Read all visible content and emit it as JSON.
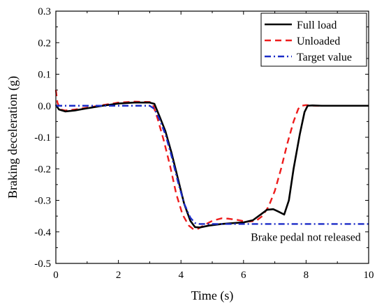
{
  "chart_data": {
    "type": "line",
    "xlabel": "Time (s)",
    "ylabel": "Braking deceleration (g)",
    "xlim": [
      0,
      10
    ],
    "ylim": [
      -0.5,
      0.3
    ],
    "xticks": [
      0,
      2,
      4,
      6,
      8,
      10
    ],
    "yticks": [
      -0.5,
      -0.4,
      -0.3,
      -0.2,
      -0.1,
      0.0,
      0.1,
      0.2,
      0.3
    ],
    "ytick_labels": [
      "-0.5",
      "-0.4",
      "-0.3",
      "-0.2",
      "-0.1",
      "0.0",
      "0.1",
      "0.2",
      "0.3"
    ],
    "xtick_labels": [
      "0",
      "2",
      "4",
      "6",
      "8",
      "10"
    ],
    "grid": false,
    "legend_position": "top-right",
    "annotation": {
      "text": "Brake pedal not released",
      "x": 9.75,
      "y": -0.415
    },
    "series": [
      {
        "name": "Full load",
        "color": "#000000",
        "dash": "solid",
        "x": [
          0,
          0.1,
          0.3,
          0.6,
          1.0,
          1.5,
          2.0,
          2.5,
          3.0,
          3.15,
          3.3,
          3.5,
          3.7,
          3.9,
          4.1,
          4.3,
          4.45,
          4.6,
          4.9,
          5.3,
          5.7,
          6.0,
          6.3,
          6.55,
          6.75,
          6.95,
          7.1,
          7.3,
          7.45,
          7.6,
          7.8,
          7.95,
          8.05,
          8.2,
          8.5,
          9.0,
          9.5,
          10.0
        ],
        "y": [
          0.003,
          -0.012,
          -0.018,
          -0.015,
          -0.008,
          0.0,
          0.007,
          0.01,
          0.01,
          0.006,
          -0.03,
          -0.08,
          -0.15,
          -0.23,
          -0.31,
          -0.365,
          -0.385,
          -0.386,
          -0.38,
          -0.375,
          -0.372,
          -0.37,
          -0.363,
          -0.345,
          -0.33,
          -0.328,
          -0.335,
          -0.345,
          -0.3,
          -0.2,
          -0.09,
          -0.02,
          0.0,
          0.001,
          0.0,
          0.0,
          0.0,
          0.0
        ]
      },
      {
        "name": "Unloaded",
        "color": "#ee1c1c",
        "dash": "dashed",
        "x": [
          0,
          0.05,
          0.15,
          0.3,
          0.6,
          1.0,
          1.5,
          2.0,
          2.5,
          3.0,
          3.1,
          3.25,
          3.45,
          3.65,
          3.85,
          4.05,
          4.25,
          4.4,
          4.55,
          4.75,
          5.0,
          5.3,
          5.5,
          5.8,
          6.1,
          6.4,
          6.6,
          6.8,
          7.0,
          7.2,
          7.4,
          7.6,
          7.75,
          7.85,
          8.0,
          8.3,
          8.7,
          10.0
        ],
        "y": [
          0.05,
          0.01,
          -0.012,
          -0.015,
          -0.012,
          -0.006,
          0.002,
          0.01,
          0.013,
          0.012,
          0.005,
          -0.04,
          -0.11,
          -0.19,
          -0.28,
          -0.345,
          -0.38,
          -0.392,
          -0.39,
          -0.378,
          -0.365,
          -0.357,
          -0.358,
          -0.362,
          -0.368,
          -0.365,
          -0.35,
          -0.32,
          -0.27,
          -0.2,
          -0.12,
          -0.05,
          -0.01,
          0.0,
          0.002,
          0.0,
          0.0,
          0.0
        ]
      },
      {
        "name": "Target value",
        "color": "#1b2cc7",
        "dash": "dashdot",
        "x": [
          0,
          1.0,
          2.0,
          3.0,
          3.15,
          3.3,
          3.5,
          3.7,
          3.9,
          4.1,
          4.3,
          4.45,
          4.6,
          4.8,
          5.0,
          6.0,
          7.0,
          8.0,
          9.0,
          10.0
        ],
        "y": [
          0.0,
          0.0,
          0.0,
          0.0,
          -0.01,
          -0.04,
          -0.09,
          -0.16,
          -0.24,
          -0.31,
          -0.355,
          -0.372,
          -0.375,
          -0.375,
          -0.375,
          -0.375,
          -0.375,
          -0.375,
          -0.375,
          -0.375
        ]
      }
    ]
  }
}
